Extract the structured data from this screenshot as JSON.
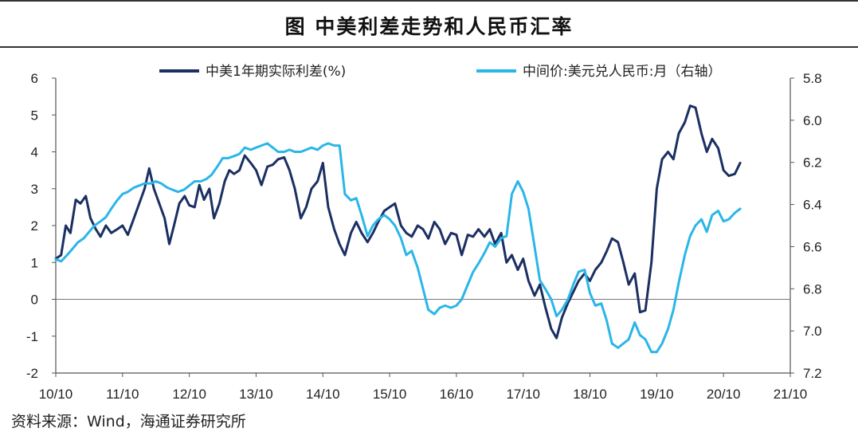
{
  "title": "图  中美利差走势和人民币汇率",
  "source": "资料来源：Wind，海通证券研究所",
  "chart_data": {
    "type": "line",
    "x_tick_labels": [
      "10/10",
      "11/10",
      "12/10",
      "13/10",
      "14/10",
      "15/10",
      "16/10",
      "17/10",
      "18/10",
      "19/10",
      "20/10",
      "21/10"
    ],
    "xlim": [
      2010.75,
      2021.75
    ],
    "y_left": {
      "ylim": [
        -2,
        6
      ],
      "ticks": [
        "6",
        "5",
        "4",
        "3",
        "2",
        "1",
        "0",
        "-1",
        "-2"
      ]
    },
    "y_right": {
      "ylim": [
        7.2,
        5.8
      ],
      "inverted": true,
      "ticks": [
        "5.8",
        "6.0",
        "6.2",
        "6.4",
        "6.6",
        "6.8",
        "7.0",
        "7.2"
      ]
    },
    "legend_position": "top",
    "grid": false,
    "zero_line": true,
    "series": [
      {
        "name": "中美1年期实际利差(%)",
        "axis": "left",
        "color": "#1b2f63",
        "points": [
          [
            2010.75,
            1.1
          ],
          [
            2010.83,
            1.2
          ],
          [
            2010.9,
            2.0
          ],
          [
            2010.97,
            1.8
          ],
          [
            2011.05,
            2.7
          ],
          [
            2011.12,
            2.6
          ],
          [
            2011.2,
            2.8
          ],
          [
            2011.27,
            2.2
          ],
          [
            2011.35,
            1.9
          ],
          [
            2011.42,
            1.7
          ],
          [
            2011.5,
            2.0
          ],
          [
            2011.58,
            1.8
          ],
          [
            2011.67,
            1.9
          ],
          [
            2011.75,
            2.0
          ],
          [
            2011.83,
            1.75
          ],
          [
            2011.92,
            2.2
          ],
          [
            2012.0,
            2.6
          ],
          [
            2012.08,
            3.0
          ],
          [
            2012.15,
            3.55
          ],
          [
            2012.22,
            3.0
          ],
          [
            2012.3,
            2.6
          ],
          [
            2012.38,
            2.2
          ],
          [
            2012.45,
            1.5
          ],
          [
            2012.52,
            2.0
          ],
          [
            2012.6,
            2.6
          ],
          [
            2012.68,
            2.8
          ],
          [
            2012.75,
            2.55
          ],
          [
            2012.83,
            2.5
          ],
          [
            2012.9,
            3.1
          ],
          [
            2012.97,
            2.7
          ],
          [
            2013.05,
            3.0
          ],
          [
            2013.12,
            2.2
          ],
          [
            2013.2,
            2.6
          ],
          [
            2013.28,
            3.2
          ],
          [
            2013.35,
            3.5
          ],
          [
            2013.42,
            3.4
          ],
          [
            2013.5,
            3.5
          ],
          [
            2013.58,
            3.9
          ],
          [
            2013.67,
            3.7
          ],
          [
            2013.75,
            3.5
          ],
          [
            2013.83,
            3.1
          ],
          [
            2013.92,
            3.6
          ],
          [
            2014.0,
            3.65
          ],
          [
            2014.08,
            3.8
          ],
          [
            2014.17,
            3.85
          ],
          [
            2014.25,
            3.5
          ],
          [
            2014.33,
            3.0
          ],
          [
            2014.42,
            2.2
          ],
          [
            2014.5,
            2.5
          ],
          [
            2014.58,
            3.0
          ],
          [
            2014.67,
            3.2
          ],
          [
            2014.75,
            3.7
          ],
          [
            2014.83,
            2.5
          ],
          [
            2014.92,
            1.9
          ],
          [
            2015.0,
            1.5
          ],
          [
            2015.08,
            1.2
          ],
          [
            2015.17,
            1.8
          ],
          [
            2015.25,
            2.1
          ],
          [
            2015.33,
            1.8
          ],
          [
            2015.42,
            1.55
          ],
          [
            2015.5,
            1.8
          ],
          [
            2015.58,
            2.1
          ],
          [
            2015.67,
            2.4
          ],
          [
            2015.75,
            2.5
          ],
          [
            2015.83,
            2.6
          ],
          [
            2015.92,
            2.0
          ],
          [
            2016.0,
            1.8
          ],
          [
            2016.08,
            1.7
          ],
          [
            2016.17,
            2.0
          ],
          [
            2016.25,
            1.9
          ],
          [
            2016.33,
            1.65
          ],
          [
            2016.42,
            2.1
          ],
          [
            2016.5,
            1.9
          ],
          [
            2016.58,
            1.5
          ],
          [
            2016.67,
            1.8
          ],
          [
            2016.75,
            1.75
          ],
          [
            2016.83,
            1.2
          ],
          [
            2016.92,
            1.75
          ],
          [
            2017.0,
            1.7
          ],
          [
            2017.08,
            1.9
          ],
          [
            2017.17,
            1.7
          ],
          [
            2017.25,
            1.9
          ],
          [
            2017.33,
            1.5
          ],
          [
            2017.42,
            1.8
          ],
          [
            2017.5,
            1.0
          ],
          [
            2017.58,
            1.2
          ],
          [
            2017.67,
            0.8
          ],
          [
            2017.75,
            1.1
          ],
          [
            2017.83,
            0.5
          ],
          [
            2017.92,
            0.1
          ],
          [
            2018.0,
            0.4
          ],
          [
            2018.08,
            -0.2
          ],
          [
            2018.17,
            -0.8
          ],
          [
            2018.25,
            -1.05
          ],
          [
            2018.33,
            -0.5
          ],
          [
            2018.42,
            -0.1
          ],
          [
            2018.5,
            0.2
          ],
          [
            2018.58,
            0.5
          ],
          [
            2018.67,
            0.7
          ],
          [
            2018.75,
            0.5
          ],
          [
            2018.83,
            0.8
          ],
          [
            2018.92,
            1.0
          ],
          [
            2019.0,
            1.3
          ],
          [
            2019.08,
            1.65
          ],
          [
            2019.17,
            1.55
          ],
          [
            2019.25,
            1.0
          ],
          [
            2019.33,
            0.4
          ],
          [
            2019.42,
            0.7
          ],
          [
            2019.5,
            -0.35
          ],
          [
            2019.58,
            -0.3
          ],
          [
            2019.67,
            1.0
          ],
          [
            2019.75,
            3.0
          ],
          [
            2019.83,
            3.8
          ],
          [
            2019.92,
            4.0
          ],
          [
            2020.0,
            3.8
          ],
          [
            2020.08,
            4.5
          ],
          [
            2020.17,
            4.8
          ],
          [
            2020.25,
            5.25
          ],
          [
            2020.33,
            5.2
          ],
          [
            2020.42,
            4.5
          ],
          [
            2020.5,
            4.0
          ],
          [
            2020.58,
            4.35
          ],
          [
            2020.67,
            4.1
          ],
          [
            2020.75,
            3.5
          ],
          [
            2020.83,
            3.35
          ],
          [
            2020.92,
            3.4
          ],
          [
            2021.0,
            3.7
          ]
        ]
      },
      {
        "name": "中间价:美元兑人民币:月（右轴）",
        "axis": "right",
        "color": "#2ab6e8",
        "points": [
          [
            2010.75,
            6.66
          ],
          [
            2010.83,
            6.67
          ],
          [
            2010.92,
            6.64
          ],
          [
            2011.0,
            6.61
          ],
          [
            2011.08,
            6.58
          ],
          [
            2011.17,
            6.56
          ],
          [
            2011.25,
            6.53
          ],
          [
            2011.33,
            6.5
          ],
          [
            2011.42,
            6.48
          ],
          [
            2011.5,
            6.46
          ],
          [
            2011.58,
            6.42
          ],
          [
            2011.67,
            6.38
          ],
          [
            2011.75,
            6.35
          ],
          [
            2011.83,
            6.34
          ],
          [
            2011.92,
            6.32
          ],
          [
            2012.0,
            6.31
          ],
          [
            2012.08,
            6.3
          ],
          [
            2012.17,
            6.3
          ],
          [
            2012.25,
            6.29
          ],
          [
            2012.33,
            6.3
          ],
          [
            2012.42,
            6.32
          ],
          [
            2012.5,
            6.33
          ],
          [
            2012.58,
            6.34
          ],
          [
            2012.67,
            6.33
          ],
          [
            2012.75,
            6.31
          ],
          [
            2012.83,
            6.29
          ],
          [
            2012.92,
            6.29
          ],
          [
            2013.0,
            6.28
          ],
          [
            2013.08,
            6.26
          ],
          [
            2013.17,
            6.22
          ],
          [
            2013.25,
            6.18
          ],
          [
            2013.33,
            6.18
          ],
          [
            2013.42,
            6.17
          ],
          [
            2013.5,
            6.16
          ],
          [
            2013.58,
            6.13
          ],
          [
            2013.67,
            6.14
          ],
          [
            2013.75,
            6.13
          ],
          [
            2013.83,
            6.12
          ],
          [
            2013.92,
            6.11
          ],
          [
            2014.0,
            6.13
          ],
          [
            2014.08,
            6.15
          ],
          [
            2014.17,
            6.15
          ],
          [
            2014.25,
            6.14
          ],
          [
            2014.33,
            6.15
          ],
          [
            2014.42,
            6.15
          ],
          [
            2014.5,
            6.14
          ],
          [
            2014.58,
            6.13
          ],
          [
            2014.67,
            6.14
          ],
          [
            2014.75,
            6.12
          ],
          [
            2014.83,
            6.11
          ],
          [
            2014.92,
            6.12
          ],
          [
            2015.0,
            6.12
          ],
          [
            2015.08,
            6.35
          ],
          [
            2015.17,
            6.38
          ],
          [
            2015.25,
            6.37
          ],
          [
            2015.33,
            6.45
          ],
          [
            2015.42,
            6.55
          ],
          [
            2015.5,
            6.5
          ],
          [
            2015.58,
            6.47
          ],
          [
            2015.67,
            6.45
          ],
          [
            2015.75,
            6.47
          ],
          [
            2015.83,
            6.5
          ],
          [
            2015.92,
            6.56
          ],
          [
            2016.0,
            6.64
          ],
          [
            2016.08,
            6.62
          ],
          [
            2016.17,
            6.7
          ],
          [
            2016.25,
            6.8
          ],
          [
            2016.33,
            6.9
          ],
          [
            2016.42,
            6.92
          ],
          [
            2016.5,
            6.89
          ],
          [
            2016.58,
            6.88
          ],
          [
            2016.67,
            6.89
          ],
          [
            2016.75,
            6.88
          ],
          [
            2016.83,
            6.85
          ],
          [
            2016.92,
            6.78
          ],
          [
            2017.0,
            6.72
          ],
          [
            2017.08,
            6.68
          ],
          [
            2017.17,
            6.63
          ],
          [
            2017.25,
            6.58
          ],
          [
            2017.33,
            6.6
          ],
          [
            2017.42,
            6.56
          ],
          [
            2017.5,
            6.55
          ],
          [
            2017.58,
            6.35
          ],
          [
            2017.67,
            6.29
          ],
          [
            2017.75,
            6.34
          ],
          [
            2017.83,
            6.42
          ],
          [
            2017.92,
            6.6
          ],
          [
            2018.0,
            6.76
          ],
          [
            2018.08,
            6.8
          ],
          [
            2018.17,
            6.85
          ],
          [
            2018.25,
            6.93
          ],
          [
            2018.33,
            6.9
          ],
          [
            2018.42,
            6.85
          ],
          [
            2018.5,
            6.78
          ],
          [
            2018.58,
            6.72
          ],
          [
            2018.67,
            6.71
          ],
          [
            2018.75,
            6.82
          ],
          [
            2018.83,
            6.88
          ],
          [
            2018.92,
            6.87
          ],
          [
            2019.0,
            6.95
          ],
          [
            2019.08,
            7.06
          ],
          [
            2019.17,
            7.08
          ],
          [
            2019.25,
            7.06
          ],
          [
            2019.33,
            7.04
          ],
          [
            2019.42,
            6.96
          ],
          [
            2019.5,
            7.02
          ],
          [
            2019.58,
            7.04
          ],
          [
            2019.67,
            7.1
          ],
          [
            2019.75,
            7.1
          ],
          [
            2019.83,
            7.06
          ],
          [
            2019.92,
            6.99
          ],
          [
            2020.0,
            6.9
          ],
          [
            2020.08,
            6.77
          ],
          [
            2020.17,
            6.64
          ],
          [
            2020.25,
            6.55
          ],
          [
            2020.33,
            6.5
          ],
          [
            2020.42,
            6.47
          ],
          [
            2020.5,
            6.53
          ],
          [
            2020.58,
            6.45
          ],
          [
            2020.67,
            6.43
          ],
          [
            2020.75,
            6.48
          ],
          [
            2020.83,
            6.47
          ],
          [
            2020.92,
            6.44
          ],
          [
            2021.0,
            6.42
          ]
        ]
      }
    ]
  }
}
